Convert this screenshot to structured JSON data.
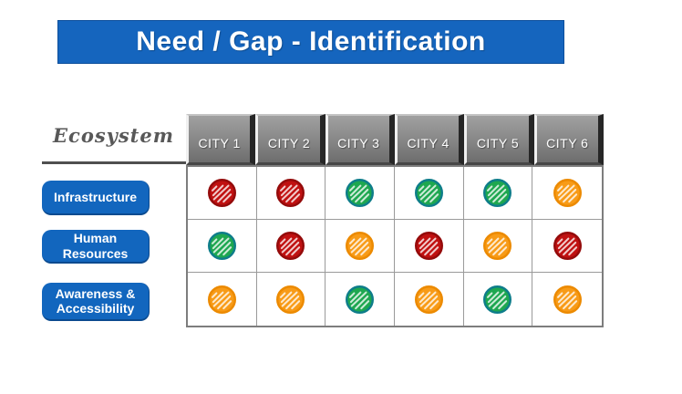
{
  "title": "Need / Gap - Identification",
  "table": {
    "corner_label": "Ecosystem",
    "columns": [
      "CITY 1",
      "CITY 2",
      "CITY 3",
      "CITY 4",
      "CITY 5",
      "CITY 6"
    ],
    "rows": [
      {
        "label": "Infrastructure",
        "statuses": [
          "red",
          "red",
          "green",
          "green",
          "green",
          "orange"
        ]
      },
      {
        "label": "Human Resources",
        "statuses": [
          "green",
          "red",
          "orange",
          "red",
          "orange",
          "red"
        ]
      },
      {
        "label": "Awareness & Accessibility",
        "statuses": [
          "orange",
          "orange",
          "green",
          "orange",
          "green",
          "orange"
        ]
      }
    ]
  },
  "dot_colors": {
    "red": {
      "fill": "#C01111",
      "ring": "#940B0B"
    },
    "green": {
      "fill": "#1EA750",
      "ring": "#0E7D8A"
    },
    "orange": {
      "fill": "#F89B17",
      "ring": "#EC8A00"
    }
  },
  "colors": {
    "title_bg": "#1565BE",
    "title_text": "#FFFFFF",
    "row_label_bg": "#1266BE",
    "row_label_text": "#FFFFFF",
    "header_button_text": "#FFFFFF",
    "ecosystem_text": "#585858"
  },
  "chart_data": {
    "type": "heatmap",
    "title": "Need / Gap - Identification",
    "x_categories": [
      "CITY 1",
      "CITY 2",
      "CITY 3",
      "CITY 4",
      "CITY 5",
      "CITY 6"
    ],
    "y_categories": [
      "Infrastructure",
      "Human Resources",
      "Awareness & Accessibility"
    ],
    "cell_colors": [
      [
        "red",
        "red",
        "green",
        "green",
        "green",
        "orange"
      ],
      [
        "green",
        "red",
        "orange",
        "red",
        "orange",
        "red"
      ],
      [
        "orange",
        "orange",
        "green",
        "orange",
        "green",
        "orange"
      ]
    ],
    "color_palette": {
      "red": "#C01111",
      "green": "#1EA750",
      "orange": "#F89B17"
    },
    "legend": "none"
  }
}
